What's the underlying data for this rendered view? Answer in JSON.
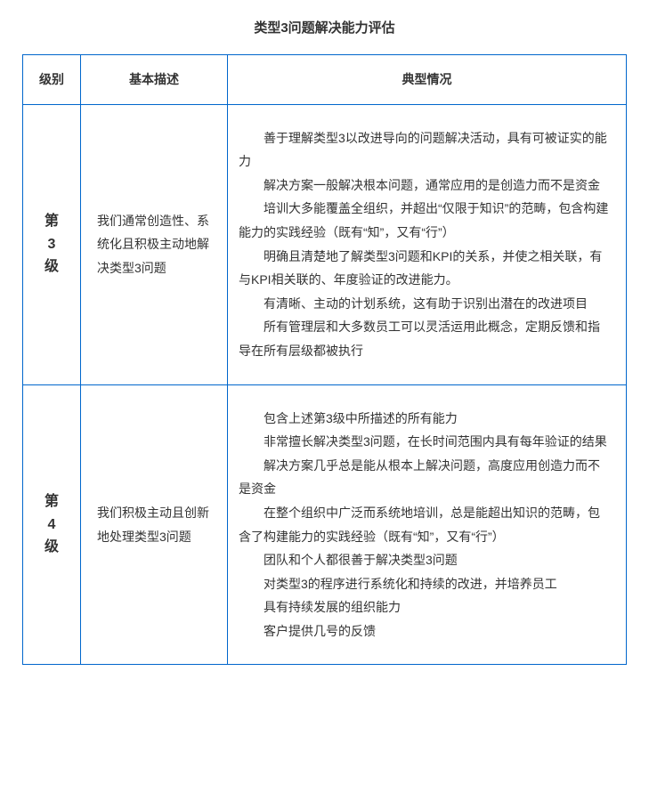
{
  "title": "类型3问题解决能力评估",
  "headers": {
    "level": "级别",
    "description": "基本描述",
    "detail": "典型情况"
  },
  "rows": [
    {
      "level_chars": [
        "第",
        "3",
        "级"
      ],
      "description": "我们通常创造性、系统化且积极主动地解决类型3问题",
      "details": [
        "善于理解类型3以改进导向的问题解决活动，具有可被证实的能力",
        "解决方案一般解决根本问题，通常应用的是创造力而不是资金",
        "培训大多能覆盖全组织，并超出“仅限于知识”的范畴，包含构建能力的实践经验（既有“知”，又有“行”）",
        "明确且清楚地了解类型3问题和KPI的关系，并使之相关联，有与KPI相关联的、年度验证的改进能力。",
        "有清晰、主动的计划系统，这有助于识别出潜在的改进项目",
        "所有管理层和大多数员工可以灵活运用此概念，定期反馈和指导在所有层级都被执行"
      ]
    },
    {
      "level_chars": [
        "第",
        "4",
        "级"
      ],
      "description": "我们积极主动且创新地处理类型3问题",
      "details": [
        "包含上述第3级中所描述的所有能力",
        "非常擅长解决类型3问题，在长时间范围内具有每年验证的结果",
        "解决方案几乎总是能从根本上解决问题，高度应用创造力而不是资金",
        "在整个组织中广泛而系统地培训，总是能超出知识的范畴，包含了构建能力的实践经验（既有“知”，又有“行”）",
        "团队和个人都很善于解决类型3问题",
        "对类型3的程序进行系统化和持续的改进，并培养员工",
        "具有持续发展的组织能力",
        "客户提供几号的反馈"
      ]
    }
  ],
  "colors": {
    "border": "#0066cc",
    "text": "#333333",
    "background": "#ffffff"
  }
}
